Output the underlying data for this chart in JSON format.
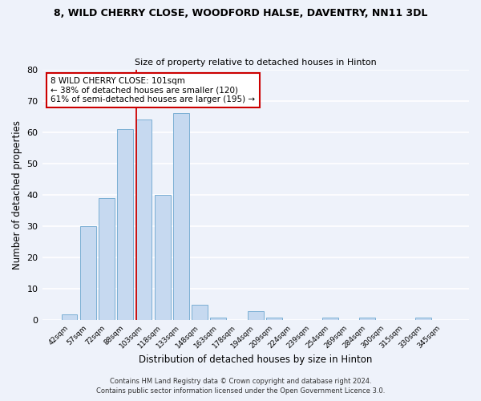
{
  "title": "8, WILD CHERRY CLOSE, WOODFORD HALSE, DAVENTRY, NN11 3DL",
  "subtitle": "Size of property relative to detached houses in Hinton",
  "xlabel": "Distribution of detached houses by size in Hinton",
  "ylabel": "Number of detached properties",
  "bar_labels": [
    "42sqm",
    "57sqm",
    "72sqm",
    "88sqm",
    "103sqm",
    "118sqm",
    "133sqm",
    "148sqm",
    "163sqm",
    "178sqm",
    "194sqm",
    "209sqm",
    "224sqm",
    "239sqm",
    "254sqm",
    "269sqm",
    "284sqm",
    "300sqm",
    "315sqm",
    "330sqm",
    "345sqm"
  ],
  "bar_values": [
    2,
    30,
    39,
    61,
    64,
    40,
    66,
    5,
    1,
    0,
    3,
    1,
    0,
    0,
    1,
    0,
    1,
    0,
    0,
    1,
    0
  ],
  "bar_color": "#c6d9f0",
  "bar_edge_color": "#7bafd4",
  "ylim": [
    0,
    80
  ],
  "yticks": [
    0,
    10,
    20,
    30,
    40,
    50,
    60,
    70,
    80
  ],
  "vline_color": "#cc0000",
  "annotation_title": "8 WILD CHERRY CLOSE: 101sqm",
  "annotation_line1": "← 38% of detached houses are smaller (120)",
  "annotation_line2": "61% of semi-detached houses are larger (195) →",
  "annotation_box_color": "#ffffff",
  "annotation_box_edge": "#cc0000",
  "footer1": "Contains HM Land Registry data © Crown copyright and database right 2024.",
  "footer2": "Contains public sector information licensed under the Open Government Licence 3.0.",
  "background_color": "#eef2fa",
  "grid_color": "#ffffff"
}
